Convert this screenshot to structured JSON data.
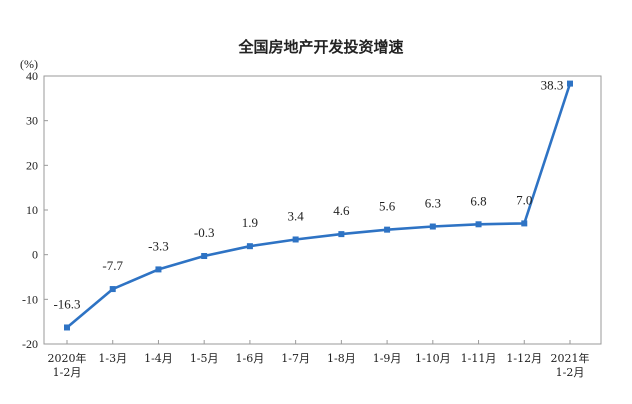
{
  "chart_data": {
    "type": "line",
    "title": "全国房地产开发投资增速",
    "unit_label": "(%)",
    "categories": [
      "2020年\n1-2月",
      "1-3月",
      "1-4月",
      "1-5月",
      "1-6月",
      "1-7月",
      "1-8月",
      "1-9月",
      "1-10月",
      "1-11月",
      "1-12月",
      "2021年\n1-2月"
    ],
    "series": [
      {
        "values": [
          -16.3,
          -7.7,
          -3.3,
          -0.3,
          1.9,
          3.4,
          4.6,
          5.6,
          6.3,
          6.8,
          7.0,
          38.3
        ],
        "data_labels": [
          "-16.3",
          "-7.7",
          "-3.3",
          "-0.3",
          "1.9",
          "3.4",
          "4.6",
          "5.6",
          "6.3",
          "6.8",
          "7.0",
          "38.3"
        ],
        "color": "#2e73c4"
      }
    ],
    "ylim": [
      -20,
      40
    ],
    "yticks": [
      -20,
      -10,
      0,
      10,
      20,
      30,
      40
    ],
    "ytick_labels": [
      "-20",
      "-10",
      "0",
      "10",
      "20",
      "30",
      "40"
    ],
    "grid": false,
    "legend": "none"
  }
}
